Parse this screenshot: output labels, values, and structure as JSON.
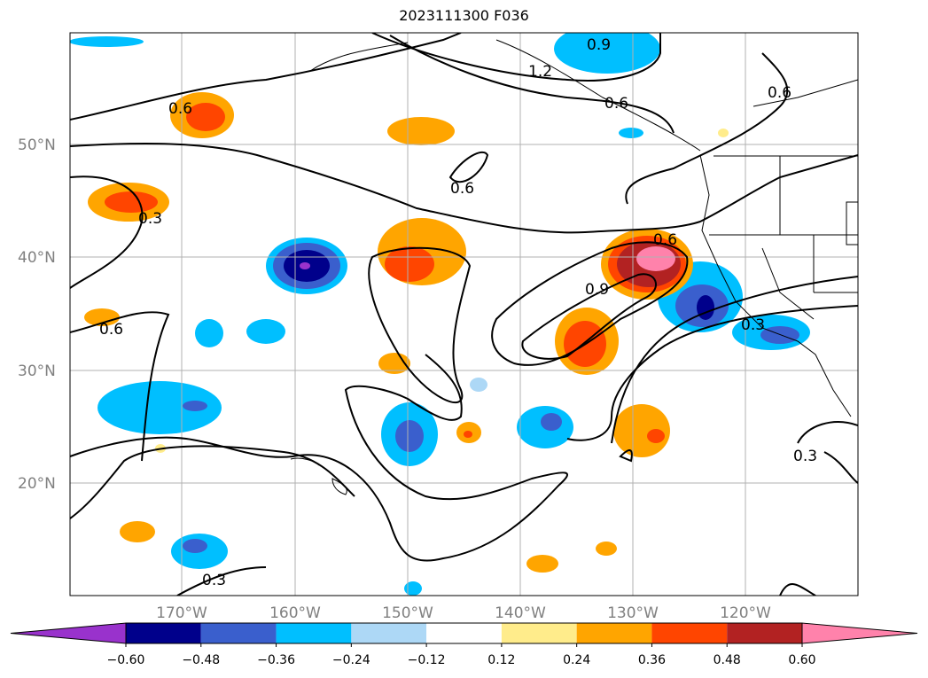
{
  "title": "2023111300 F036",
  "map": {
    "lat_labels": [
      "50°N",
      "40°N",
      "30°N",
      "20°N"
    ],
    "lon_labels": [
      "170°W",
      "160°W",
      "150°W",
      "140°W",
      "130°W",
      "120°W"
    ],
    "contour_labels": [
      "1.2",
      "0.9",
      "0.6",
      "0.6",
      "0.6",
      "0.6",
      "0.6",
      "0.9",
      "0.3",
      "0.3",
      "0.3",
      "0.3",
      "0.6"
    ]
  },
  "colorbar": {
    "ticks": [
      "−0.60",
      "−0.48",
      "−0.36",
      "−0.24",
      "−0.12",
      "0.12",
      "0.24",
      "0.36",
      "0.48",
      "0.60"
    ],
    "colors": [
      "#9932cc",
      "#00008b",
      "#3a5fcd",
      "#00bfff",
      "#add8f6",
      "#ffffff",
      "#ffec8b",
      "#ffa500",
      "#ff4500",
      "#b22222",
      "#ff82ab"
    ]
  }
}
